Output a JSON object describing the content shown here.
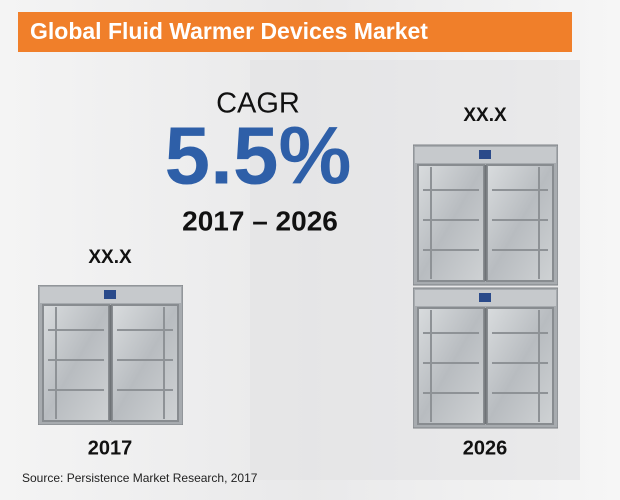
{
  "header": {
    "title": "Global Fluid Warmer Devices Market"
  },
  "cagr": {
    "label": "CAGR",
    "value": "5.5%",
    "period": "2017 – 2026"
  },
  "items": [
    {
      "value": "XX.X",
      "year": "2017"
    },
    {
      "value": "XX.X",
      "year": "2026"
    }
  ],
  "source": "Source: Persistence Market Research, 2017"
}
